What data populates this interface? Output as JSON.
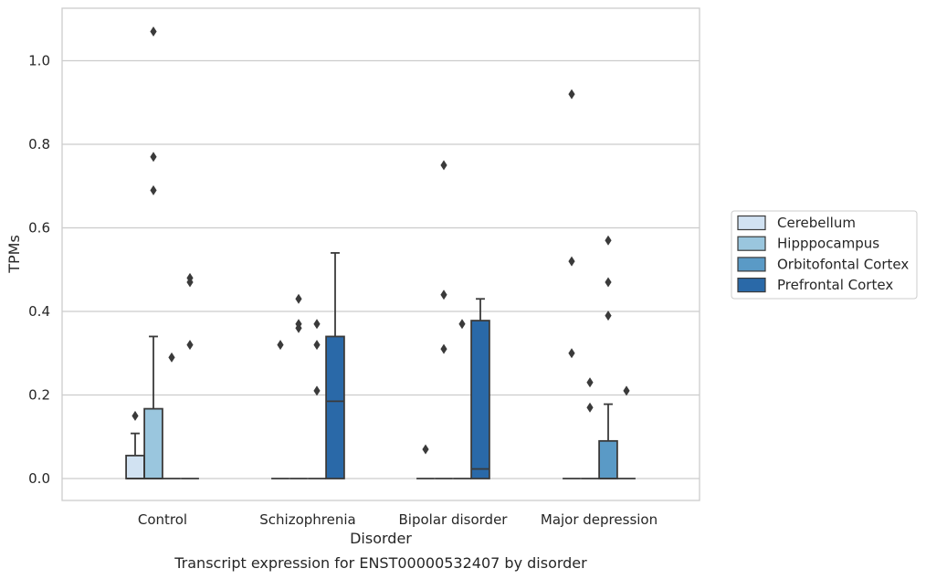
{
  "chart_data": {
    "type": "boxplot",
    "caption": "Transcript expression for ENST00000532407 by disorder",
    "xlabel": "Disorder",
    "ylabel": "TPMs",
    "ylim": [
      -0.052,
      1.127
    ],
    "yticks": [
      "0.0",
      "0.2",
      "0.4",
      "0.6",
      "0.8",
      "1.0"
    ],
    "ytick_values": [
      0.0,
      0.2,
      0.4,
      0.6,
      0.8,
      1.0
    ],
    "grid": "horizontal",
    "legend_position": "right",
    "categories": [
      "Control",
      "Schizophrenia",
      "Bipolar disorder",
      "Major depression"
    ],
    "series": [
      {
        "name": "Cerebellum",
        "color": "#d1e2f2",
        "boxes": [
          {
            "q1": 0.0,
            "median": 0.0,
            "q3": 0.055,
            "whisker_low": 0.0,
            "whisker_high": 0.108,
            "outliers": [
              0.15
            ]
          },
          {
            "q1": 0.0,
            "median": 0.0,
            "q3": 0.0,
            "whisker_low": 0.0,
            "whisker_high": 0.0,
            "outliers": [
              0.32
            ]
          },
          {
            "q1": 0.0,
            "median": 0.0,
            "q3": 0.0,
            "whisker_low": 0.0,
            "whisker_high": 0.0,
            "outliers": [
              0.07
            ]
          },
          {
            "q1": 0.0,
            "median": 0.0,
            "q3": 0.0,
            "whisker_low": 0.0,
            "whisker_high": 0.0,
            "outliers": [
              0.92,
              0.52,
              0.3
            ]
          }
        ]
      },
      {
        "name": "Hipppocampus",
        "color": "#9ac6de",
        "boxes": [
          {
            "q1": 0.0,
            "median": 0.0,
            "q3": 0.167,
            "whisker_low": 0.0,
            "whisker_high": 0.34,
            "outliers": [
              1.07,
              0.77,
              0.69
            ]
          },
          {
            "q1": 0.0,
            "median": 0.0,
            "q3": 0.0,
            "whisker_low": 0.0,
            "whisker_high": 0.0,
            "outliers": [
              0.43,
              0.37,
              0.36
            ]
          },
          {
            "q1": 0.0,
            "median": 0.0,
            "q3": 0.0,
            "whisker_low": 0.0,
            "whisker_high": 0.0,
            "outliers": [
              0.75,
              0.44,
              0.31
            ]
          },
          {
            "q1": 0.0,
            "median": 0.0,
            "q3": 0.0,
            "whisker_low": 0.0,
            "whisker_high": 0.0,
            "outliers": [
              0.23,
              0.17
            ]
          }
        ]
      },
      {
        "name": "Orbitofontal Cortex",
        "color": "#5a9ac6",
        "boxes": [
          {
            "q1": 0.0,
            "median": 0.0,
            "q3": 0.0,
            "whisker_low": 0.0,
            "whisker_high": 0.0,
            "outliers": [
              0.29
            ]
          },
          {
            "q1": 0.0,
            "median": 0.0,
            "q3": 0.0,
            "whisker_low": 0.0,
            "whisker_high": 0.0,
            "outliers": [
              0.37,
              0.32,
              0.21
            ]
          },
          {
            "q1": 0.0,
            "median": 0.0,
            "q3": 0.0,
            "whisker_low": 0.0,
            "whisker_high": 0.0,
            "outliers": [
              0.37
            ]
          },
          {
            "q1": 0.0,
            "median": 0.0,
            "q3": 0.09,
            "whisker_low": 0.0,
            "whisker_high": 0.178,
            "outliers": [
              0.57,
              0.47,
              0.39
            ]
          }
        ]
      },
      {
        "name": "Prefrontal Cortex",
        "color": "#2a69a8",
        "boxes": [
          {
            "q1": 0.0,
            "median": 0.0,
            "q3": 0.0,
            "whisker_low": 0.0,
            "whisker_high": 0.0,
            "outliers": [
              0.48,
              0.47,
              0.32
            ]
          },
          {
            "q1": 0.0,
            "median": 0.185,
            "q3": 0.34,
            "whisker_low": 0.0,
            "whisker_high": 0.54,
            "outliers": []
          },
          {
            "q1": 0.0,
            "median": 0.023,
            "q3": 0.378,
            "whisker_low": 0.0,
            "whisker_high": 0.43,
            "outliers": []
          },
          {
            "q1": 0.0,
            "median": 0.0,
            "q3": 0.0,
            "whisker_low": 0.0,
            "whisker_high": 0.0,
            "outliers": [
              0.21
            ]
          }
        ]
      }
    ]
  }
}
